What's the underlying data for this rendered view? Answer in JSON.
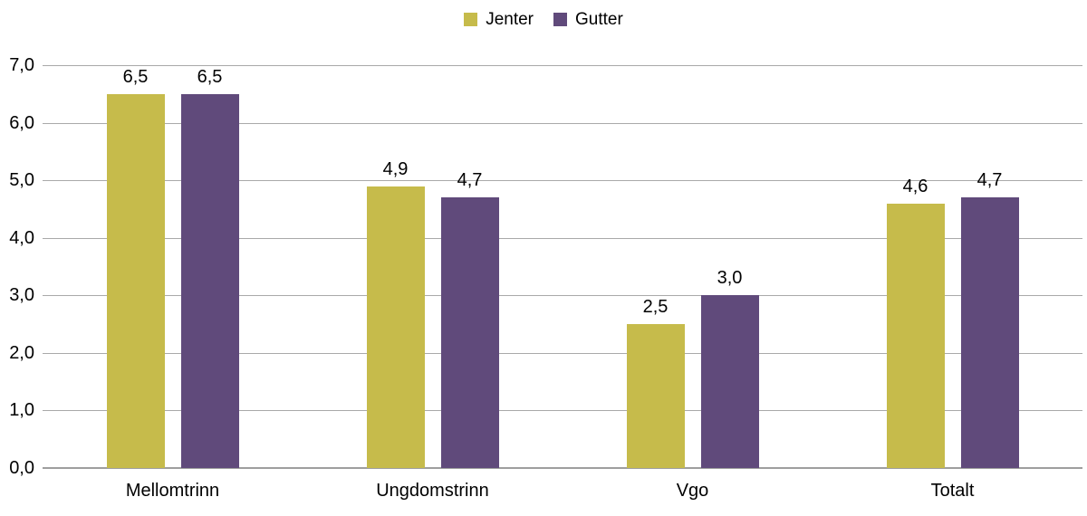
{
  "chart_data": {
    "type": "bar",
    "title": "",
    "categories": [
      "Mellomtrinn",
      "Ungdomstrinn",
      "Vgo",
      "Totalt"
    ],
    "series": [
      {
        "name": "Jenter",
        "color": "#c6bb4b",
        "values": [
          6.5,
          4.9,
          2.5,
          4.6
        ],
        "value_labels": [
          "6,5",
          "4,9",
          "2,5",
          "4,6"
        ]
      },
      {
        "name": "Gutter",
        "color": "#604a7b",
        "values": [
          6.5,
          4.7,
          3.0,
          4.7
        ],
        "value_labels": [
          "6,5",
          "4,7",
          "3,0",
          "4,7"
        ]
      }
    ],
    "ylim": [
      0,
      7
    ],
    "ytick_step": 1,
    "ytick_labels": [
      "0,0",
      "1,0",
      "2,0",
      "3,0",
      "4,0",
      "5,0",
      "6,0",
      "7,0"
    ],
    "grid": true,
    "legend_position": "top-center",
    "colors": {
      "gridline": "#a9a9a9",
      "axis_line": "#9e9e9e",
      "text": "#000000",
      "background": "#ffffff"
    }
  }
}
